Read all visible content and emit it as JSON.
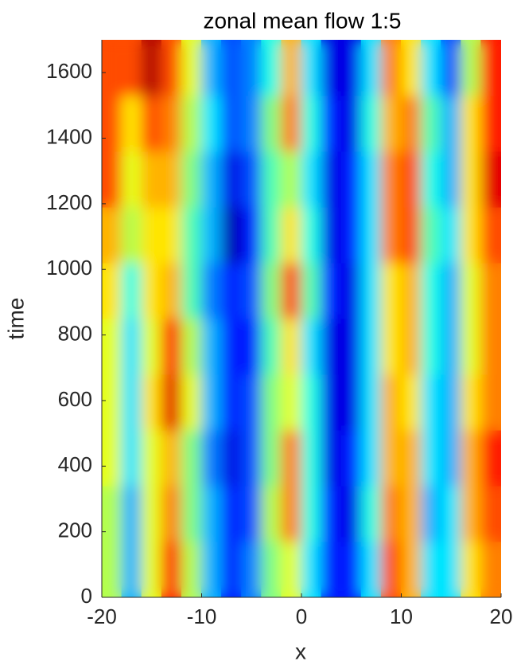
{
  "chart_data": {
    "type": "heatmap",
    "title": "zonal mean flow  1:5",
    "x_label": "x",
    "y_label": "time",
    "colormap": "jet",
    "zlim": [
      -1,
      1
    ],
    "x": [
      -19,
      -17,
      -15,
      -13,
      -11,
      -9,
      -7,
      -5,
      -3,
      -1,
      1,
      3,
      5,
      7,
      9,
      11,
      13,
      15,
      17,
      19
    ],
    "y": [
      85,
      255,
      425,
      595,
      765,
      935,
      1105,
      1275,
      1445,
      1615
    ],
    "z": [
      [
        0.1,
        -0.4,
        0.2,
        0.7,
        0.1,
        -0.4,
        -0.7,
        -0.5,
        0.0,
        0.2,
        -0.3,
        -0.7,
        -0.7,
        -0.3,
        0.6,
        0.4,
        -0.3,
        -0.3,
        0.3,
        0.5
      ],
      [
        0.1,
        -0.4,
        0.2,
        0.5,
        0.0,
        -0.4,
        -0.7,
        -0.6,
        0.1,
        0.5,
        -0.2,
        -0.7,
        -0.8,
        -0.2,
        0.5,
        0.4,
        -0.4,
        -0.3,
        0.4,
        0.6
      ],
      [
        0.2,
        -0.3,
        0.2,
        0.4,
        0.0,
        -0.5,
        -0.8,
        -0.6,
        0.0,
        0.5,
        -0.2,
        -0.8,
        -0.7,
        -0.3,
        0.4,
        0.4,
        -0.3,
        -0.4,
        0.4,
        0.7
      ],
      [
        0.2,
        -0.3,
        0.3,
        0.8,
        0.2,
        -0.4,
        -0.7,
        -0.6,
        0.0,
        0.2,
        -0.2,
        -0.8,
        -0.8,
        -0.3,
        0.4,
        0.3,
        -0.3,
        -0.4,
        0.3,
        0.5
      ],
      [
        0.2,
        -0.3,
        0.2,
        0.7,
        0.1,
        -0.4,
        -0.7,
        -0.7,
        -0.1,
        0.3,
        -0.3,
        -0.8,
        -0.8,
        -0.3,
        0.3,
        0.4,
        -0.2,
        -0.4,
        0.2,
        0.5
      ],
      [
        0.3,
        -0.2,
        0.3,
        0.4,
        -0.1,
        -0.5,
        -0.7,
        -0.6,
        0.0,
        0.6,
        -0.1,
        -0.7,
        -0.8,
        -0.3,
        0.3,
        0.4,
        -0.2,
        -0.4,
        0.2,
        0.5
      ],
      [
        0.4,
        0.1,
        0.3,
        0.3,
        -0.1,
        -0.4,
        -0.9,
        -0.7,
        -0.1,
        0.3,
        -0.2,
        -0.8,
        -0.7,
        -0.3,
        0.5,
        0.6,
        -0.1,
        -0.3,
        0.3,
        0.6
      ],
      [
        0.6,
        0.2,
        0.4,
        0.4,
        0.0,
        -0.4,
        -0.8,
        -0.6,
        -0.1,
        0.1,
        -0.3,
        -0.8,
        -0.7,
        -0.3,
        0.5,
        0.6,
        -0.2,
        -0.4,
        0.3,
        0.8
      ],
      [
        0.6,
        0.3,
        0.6,
        0.5,
        0.1,
        -0.3,
        -0.6,
        -0.5,
        0.0,
        0.5,
        -0.2,
        -0.7,
        -0.8,
        -0.2,
        0.4,
        0.5,
        -0.1,
        -0.4,
        0.3,
        0.7
      ],
      [
        0.6,
        0.6,
        0.9,
        0.6,
        0.2,
        -0.4,
        -0.6,
        -0.5,
        -0.2,
        0.4,
        -0.3,
        -0.8,
        -0.8,
        -0.3,
        0.5,
        0.3,
        -0.3,
        -0.6,
        0.1,
        0.7
      ]
    ],
    "xlim": [
      -20,
      20
    ],
    "ylim": [
      0,
      1700
    ],
    "xticks": [
      -20,
      -10,
      0,
      10,
      20
    ],
    "yticks": [
      0,
      200,
      400,
      600,
      800,
      1000,
      1200,
      1400,
      1600
    ]
  }
}
